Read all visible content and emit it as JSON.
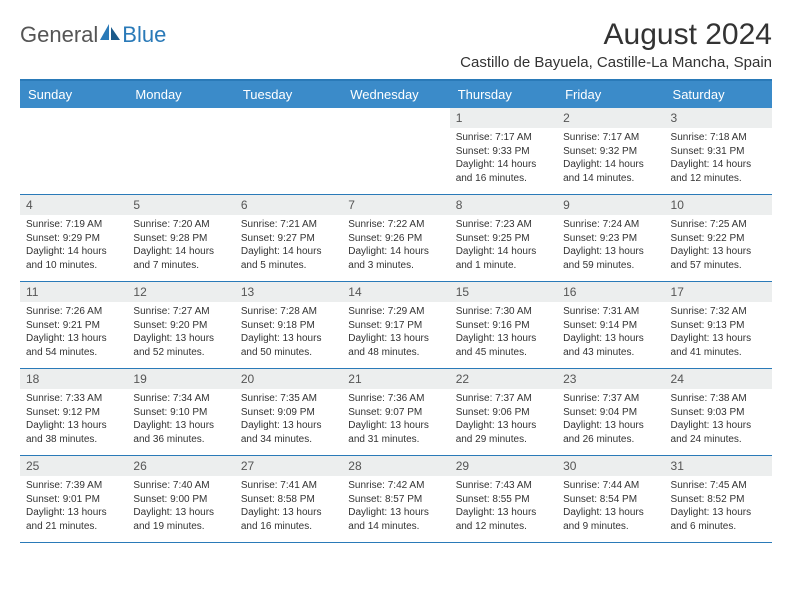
{
  "logo": {
    "text1": "General",
    "text2": "Blue"
  },
  "title": "August 2024",
  "location": "Castillo de Bayuela, Castille-La Mancha, Spain",
  "colors": {
    "header_bg": "#3b8bc9",
    "border": "#2a7ab8",
    "daynum_bg": "#eceeee"
  },
  "day_names": [
    "Sunday",
    "Monday",
    "Tuesday",
    "Wednesday",
    "Thursday",
    "Friday",
    "Saturday"
  ],
  "weeks": [
    [
      null,
      null,
      null,
      null,
      {
        "n": "1",
        "sr": "Sunrise: 7:17 AM",
        "ss": "Sunset: 9:33 PM",
        "dl": "Daylight: 14 hours and 16 minutes."
      },
      {
        "n": "2",
        "sr": "Sunrise: 7:17 AM",
        "ss": "Sunset: 9:32 PM",
        "dl": "Daylight: 14 hours and 14 minutes."
      },
      {
        "n": "3",
        "sr": "Sunrise: 7:18 AM",
        "ss": "Sunset: 9:31 PM",
        "dl": "Daylight: 14 hours and 12 minutes."
      }
    ],
    [
      {
        "n": "4",
        "sr": "Sunrise: 7:19 AM",
        "ss": "Sunset: 9:29 PM",
        "dl": "Daylight: 14 hours and 10 minutes."
      },
      {
        "n": "5",
        "sr": "Sunrise: 7:20 AM",
        "ss": "Sunset: 9:28 PM",
        "dl": "Daylight: 14 hours and 7 minutes."
      },
      {
        "n": "6",
        "sr": "Sunrise: 7:21 AM",
        "ss": "Sunset: 9:27 PM",
        "dl": "Daylight: 14 hours and 5 minutes."
      },
      {
        "n": "7",
        "sr": "Sunrise: 7:22 AM",
        "ss": "Sunset: 9:26 PM",
        "dl": "Daylight: 14 hours and 3 minutes."
      },
      {
        "n": "8",
        "sr": "Sunrise: 7:23 AM",
        "ss": "Sunset: 9:25 PM",
        "dl": "Daylight: 14 hours and 1 minute."
      },
      {
        "n": "9",
        "sr": "Sunrise: 7:24 AM",
        "ss": "Sunset: 9:23 PM",
        "dl": "Daylight: 13 hours and 59 minutes."
      },
      {
        "n": "10",
        "sr": "Sunrise: 7:25 AM",
        "ss": "Sunset: 9:22 PM",
        "dl": "Daylight: 13 hours and 57 minutes."
      }
    ],
    [
      {
        "n": "11",
        "sr": "Sunrise: 7:26 AM",
        "ss": "Sunset: 9:21 PM",
        "dl": "Daylight: 13 hours and 54 minutes."
      },
      {
        "n": "12",
        "sr": "Sunrise: 7:27 AM",
        "ss": "Sunset: 9:20 PM",
        "dl": "Daylight: 13 hours and 52 minutes."
      },
      {
        "n": "13",
        "sr": "Sunrise: 7:28 AM",
        "ss": "Sunset: 9:18 PM",
        "dl": "Daylight: 13 hours and 50 minutes."
      },
      {
        "n": "14",
        "sr": "Sunrise: 7:29 AM",
        "ss": "Sunset: 9:17 PM",
        "dl": "Daylight: 13 hours and 48 minutes."
      },
      {
        "n": "15",
        "sr": "Sunrise: 7:30 AM",
        "ss": "Sunset: 9:16 PM",
        "dl": "Daylight: 13 hours and 45 minutes."
      },
      {
        "n": "16",
        "sr": "Sunrise: 7:31 AM",
        "ss": "Sunset: 9:14 PM",
        "dl": "Daylight: 13 hours and 43 minutes."
      },
      {
        "n": "17",
        "sr": "Sunrise: 7:32 AM",
        "ss": "Sunset: 9:13 PM",
        "dl": "Daylight: 13 hours and 41 minutes."
      }
    ],
    [
      {
        "n": "18",
        "sr": "Sunrise: 7:33 AM",
        "ss": "Sunset: 9:12 PM",
        "dl": "Daylight: 13 hours and 38 minutes."
      },
      {
        "n": "19",
        "sr": "Sunrise: 7:34 AM",
        "ss": "Sunset: 9:10 PM",
        "dl": "Daylight: 13 hours and 36 minutes."
      },
      {
        "n": "20",
        "sr": "Sunrise: 7:35 AM",
        "ss": "Sunset: 9:09 PM",
        "dl": "Daylight: 13 hours and 34 minutes."
      },
      {
        "n": "21",
        "sr": "Sunrise: 7:36 AM",
        "ss": "Sunset: 9:07 PM",
        "dl": "Daylight: 13 hours and 31 minutes."
      },
      {
        "n": "22",
        "sr": "Sunrise: 7:37 AM",
        "ss": "Sunset: 9:06 PM",
        "dl": "Daylight: 13 hours and 29 minutes."
      },
      {
        "n": "23",
        "sr": "Sunrise: 7:37 AM",
        "ss": "Sunset: 9:04 PM",
        "dl": "Daylight: 13 hours and 26 minutes."
      },
      {
        "n": "24",
        "sr": "Sunrise: 7:38 AM",
        "ss": "Sunset: 9:03 PM",
        "dl": "Daylight: 13 hours and 24 minutes."
      }
    ],
    [
      {
        "n": "25",
        "sr": "Sunrise: 7:39 AM",
        "ss": "Sunset: 9:01 PM",
        "dl": "Daylight: 13 hours and 21 minutes."
      },
      {
        "n": "26",
        "sr": "Sunrise: 7:40 AM",
        "ss": "Sunset: 9:00 PM",
        "dl": "Daylight: 13 hours and 19 minutes."
      },
      {
        "n": "27",
        "sr": "Sunrise: 7:41 AM",
        "ss": "Sunset: 8:58 PM",
        "dl": "Daylight: 13 hours and 16 minutes."
      },
      {
        "n": "28",
        "sr": "Sunrise: 7:42 AM",
        "ss": "Sunset: 8:57 PM",
        "dl": "Daylight: 13 hours and 14 minutes."
      },
      {
        "n": "29",
        "sr": "Sunrise: 7:43 AM",
        "ss": "Sunset: 8:55 PM",
        "dl": "Daylight: 13 hours and 12 minutes."
      },
      {
        "n": "30",
        "sr": "Sunrise: 7:44 AM",
        "ss": "Sunset: 8:54 PM",
        "dl": "Daylight: 13 hours and 9 minutes."
      },
      {
        "n": "31",
        "sr": "Sunrise: 7:45 AM",
        "ss": "Sunset: 8:52 PM",
        "dl": "Daylight: 13 hours and 6 minutes."
      }
    ]
  ]
}
